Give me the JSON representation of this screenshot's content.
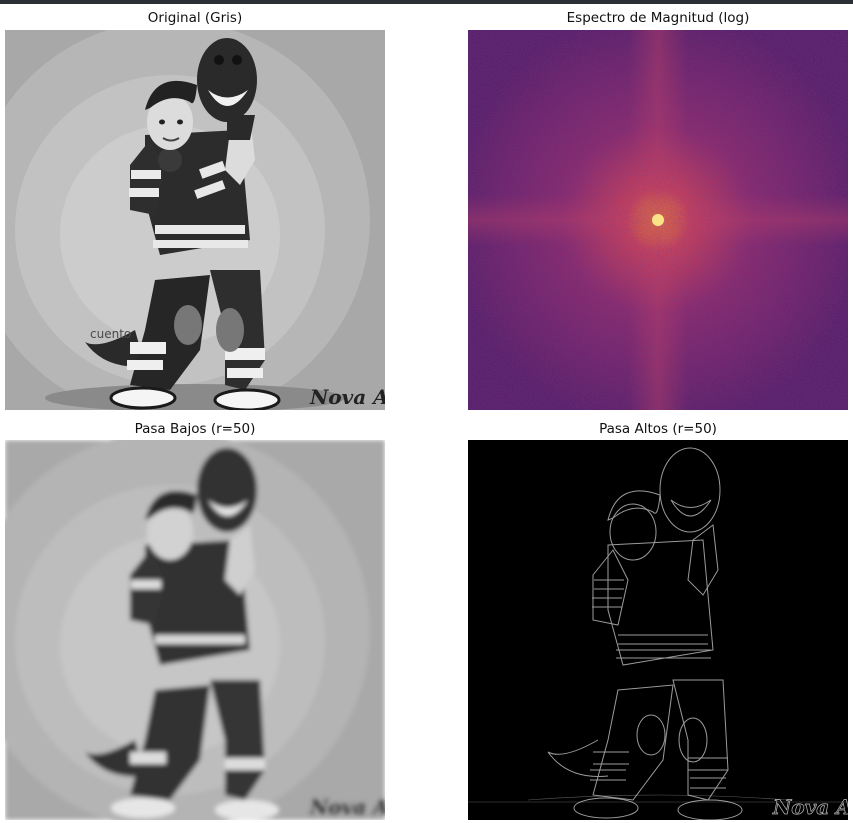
{
  "window": {
    "topbar_color": "#2b2f36"
  },
  "figure": {
    "panels": [
      {
        "id": "original",
        "title": "Original (Gris)",
        "signature": "Nova Art",
        "corner_label": "cuento"
      },
      {
        "id": "spectrum",
        "title": "Espectro de Magnitud (log)",
        "colormap": "inferno"
      },
      {
        "id": "lowpass",
        "title": "Pasa Bajos (r=50)",
        "signature": "Nova Art"
      },
      {
        "id": "highpass",
        "title": "Pasa Altos (r=50)",
        "signature": "Nova Art"
      }
    ]
  }
}
